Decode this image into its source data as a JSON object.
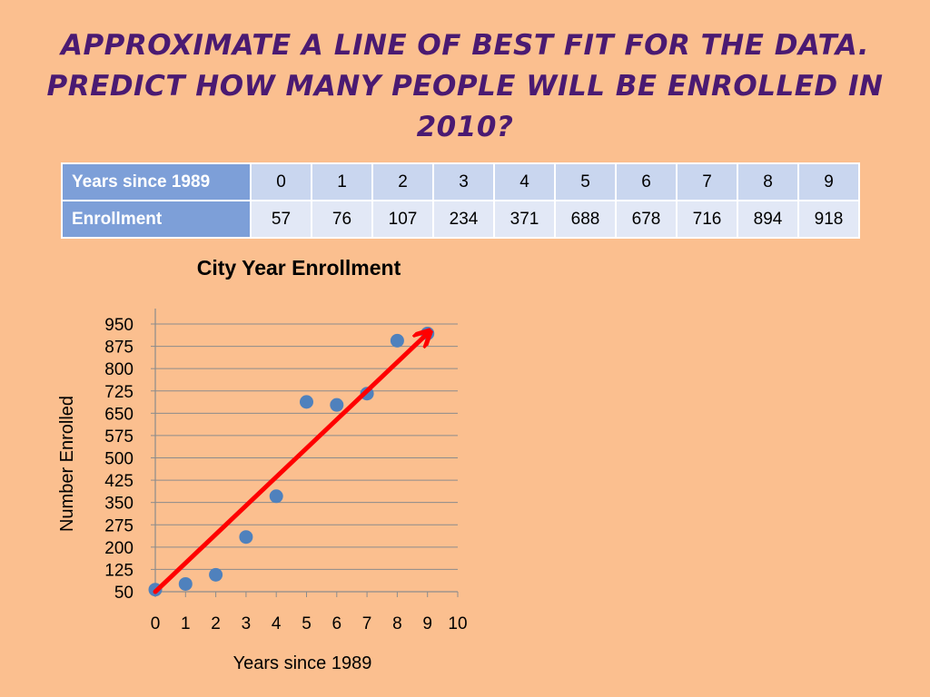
{
  "slide": {
    "title": "Approximate a line of best fit for the data. Predict how many people will be enrolled in 2010?"
  },
  "table": {
    "row_headers": [
      "Years since 1989",
      "Enrollment"
    ],
    "years": [
      "0",
      "1",
      "2",
      "3",
      "4",
      "5",
      "6",
      "7",
      "8",
      "9"
    ],
    "enrollment": [
      "57",
      "76",
      "107",
      "234",
      "371",
      "688",
      "678",
      "716",
      "894",
      "918"
    ]
  },
  "colors": {
    "background": "#fbbf8f",
    "title": "#4a1a72",
    "table_header": "#7d9fd8",
    "point": "#4f81bd",
    "fit_line": "#ff0000"
  },
  "chart_data": {
    "type": "scatter",
    "title": "City Year Enrollment",
    "xlabel": "Years since 1989",
    "ylabel": "Number Enrolled",
    "xlim": [
      0,
      10
    ],
    "ylim": [
      50,
      950
    ],
    "x_ticks": [
      "0",
      "1",
      "2",
      "3",
      "4",
      "5",
      "6",
      "7",
      "8",
      "9",
      "10"
    ],
    "y_ticks": [
      "50",
      "125",
      "200",
      "275",
      "350",
      "425",
      "500",
      "575",
      "650",
      "725",
      "800",
      "875",
      "950"
    ],
    "grid": "horizontal",
    "points": [
      {
        "x": 0,
        "y": 57
      },
      {
        "x": 1,
        "y": 76
      },
      {
        "x": 2,
        "y": 107
      },
      {
        "x": 3,
        "y": 234
      },
      {
        "x": 4,
        "y": 371
      },
      {
        "x": 5,
        "y": 688
      },
      {
        "x": 6,
        "y": 678
      },
      {
        "x": 7,
        "y": 716
      },
      {
        "x": 8,
        "y": 894
      },
      {
        "x": 9,
        "y": 918
      }
    ],
    "fit_line": {
      "from": {
        "x": 0,
        "y": 50
      },
      "to": {
        "x": 9,
        "y": 918
      }
    }
  }
}
